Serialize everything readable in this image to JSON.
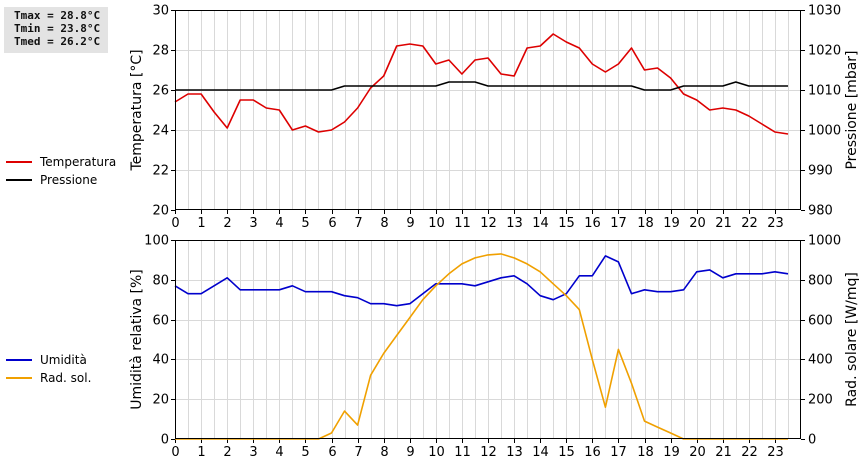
{
  "stats": {
    "tmax": "Tmax = 28.8°C",
    "tmin": "Tmin = 23.8°C",
    "tmed": "Tmed = 26.2°C"
  },
  "chart_data": [
    {
      "type": "line",
      "xlabel": "",
      "ylabel": "Temperatura [°C]",
      "y2label": "Pressione [mbar]",
      "xlim": [
        0,
        24
      ],
      "ylim": [
        20,
        30
      ],
      "y2lim": [
        980,
        1030
      ],
      "x_ticks": [
        "0",
        "1",
        "2",
        "3",
        "4",
        "5",
        "6",
        "7",
        "8",
        "9",
        "10",
        "11",
        "12",
        "13",
        "14",
        "15",
        "16",
        "17",
        "18",
        "19",
        "20",
        "21",
        "22",
        "23"
      ],
      "y_ticks": [
        "20",
        "22",
        "24",
        "26",
        "28",
        "30"
      ],
      "y2_ticks": [
        "980",
        "990",
        "1000",
        "1010",
        "1020",
        "1030"
      ],
      "grid": true,
      "legend": "left",
      "series": [
        {
          "name": "Temperatura",
          "color": "#dd0000",
          "axis": "left",
          "x": [
            0,
            0.5,
            1,
            1.5,
            2,
            2.5,
            3,
            3.5,
            4,
            4.5,
            5,
            5.5,
            6,
            6.5,
            7,
            7.5,
            8,
            8.5,
            9,
            9.5,
            10,
            10.5,
            11,
            11.5,
            12,
            12.5,
            13,
            13.5,
            14,
            14.5,
            15,
            15.5,
            16,
            16.5,
            17,
            17.5,
            18,
            18.5,
            19,
            19.5,
            20,
            20.5,
            21,
            21.5,
            22,
            22.5,
            23,
            23.5
          ],
          "values": [
            25.4,
            25.8,
            25.8,
            24.9,
            24.1,
            25.5,
            25.5,
            25.1,
            25.0,
            24.0,
            24.2,
            23.9,
            24.0,
            24.4,
            25.1,
            26.1,
            26.7,
            28.2,
            28.3,
            28.2,
            27.3,
            27.5,
            26.8,
            27.5,
            27.6,
            26.8,
            26.7,
            28.1,
            28.2,
            28.8,
            28.4,
            28.1,
            27.3,
            26.9,
            27.3,
            28.1,
            27.0,
            27.1,
            26.6,
            25.8,
            25.5,
            25.0,
            25.1,
            25.0,
            24.7,
            24.3,
            23.9,
            23.8
          ]
        },
        {
          "name": "Pressione",
          "color": "#000000",
          "axis": "right",
          "x": [
            0,
            0.5,
            1,
            1.5,
            2,
            2.5,
            3,
            3.5,
            4,
            4.5,
            5,
            5.5,
            6,
            6.5,
            7,
            7.5,
            8,
            8.5,
            9,
            9.5,
            10,
            10.5,
            11,
            11.5,
            12,
            12.5,
            13,
            13.5,
            14,
            14.5,
            15,
            15.5,
            16,
            16.5,
            17,
            17.5,
            18,
            18.5,
            19,
            19.5,
            20,
            20.5,
            21,
            21.5,
            22,
            22.5,
            23,
            23.5
          ],
          "values": [
            1010,
            1010,
            1010,
            1010,
            1010,
            1010,
            1010,
            1010,
            1010,
            1010,
            1010,
            1010,
            1010,
            1011,
            1011,
            1011,
            1011,
            1011,
            1011,
            1011,
            1011,
            1012,
            1012,
            1012,
            1011,
            1011,
            1011,
            1011,
            1011,
            1011,
            1011,
            1011,
            1011,
            1011,
            1011,
            1011,
            1010,
            1010,
            1010,
            1011,
            1011,
            1011,
            1011,
            1012,
            1011,
            1011,
            1011,
            1011
          ]
        }
      ]
    },
    {
      "type": "line",
      "xlabel": "",
      "ylabel": "Umidità relativa [%]",
      "y2label": "Rad. solare [W/mq]",
      "xlim": [
        0,
        24
      ],
      "ylim": [
        0,
        100
      ],
      "y2lim": [
        0,
        1000
      ],
      "x_ticks": [
        "0",
        "1",
        "2",
        "3",
        "4",
        "5",
        "6",
        "7",
        "8",
        "9",
        "10",
        "11",
        "12",
        "13",
        "14",
        "15",
        "16",
        "17",
        "18",
        "19",
        "20",
        "21",
        "22",
        "23"
      ],
      "y_ticks": [
        "0",
        "20",
        "40",
        "60",
        "80",
        "100"
      ],
      "y2_ticks": [
        "0",
        "200",
        "400",
        "600",
        "800",
        "1000"
      ],
      "grid": true,
      "legend": "left",
      "series": [
        {
          "name": "Umidità",
          "color": "#0000cc",
          "axis": "left",
          "x": [
            0,
            0.5,
            1,
            1.5,
            2,
            2.5,
            3,
            3.5,
            4,
            4.5,
            5,
            5.5,
            6,
            6.5,
            7,
            7.5,
            8,
            8.5,
            9,
            9.5,
            10,
            10.5,
            11,
            11.5,
            12,
            12.5,
            13,
            13.5,
            14,
            14.5,
            15,
            15.5,
            16,
            16.5,
            17,
            17.5,
            18,
            18.5,
            19,
            19.5,
            20,
            20.5,
            21,
            21.5,
            22,
            22.5,
            23,
            23.5
          ],
          "values": [
            77,
            73,
            73,
            77,
            81,
            75,
            75,
            75,
            75,
            77,
            74,
            74,
            74,
            72,
            71,
            68,
            68,
            67,
            68,
            73,
            78,
            78,
            78,
            77,
            79,
            81,
            82,
            78,
            72,
            70,
            73,
            82,
            82,
            92,
            89,
            73,
            75,
            74,
            74,
            75,
            84,
            85,
            81,
            83,
            83,
            83,
            84,
            83
          ]
        },
        {
          "name": "Rad. sol.",
          "color": "#f0a000",
          "axis": "right",
          "x": [
            0,
            0.5,
            1,
            1.5,
            2,
            2.5,
            3,
            3.5,
            4,
            4.5,
            5,
            5.5,
            6,
            6.5,
            7,
            7.5,
            8,
            8.5,
            9,
            9.5,
            10,
            10.5,
            11,
            11.5,
            12,
            12.5,
            13,
            13.5,
            14,
            14.5,
            15,
            15.5,
            16,
            16.5,
            17,
            17.5,
            18,
            18.5,
            19,
            19.5,
            20,
            20.5,
            21,
            21.5,
            22,
            22.5,
            23,
            23.5
          ],
          "values": [
            0,
            0,
            0,
            0,
            0,
            0,
            0,
            0,
            0,
            0,
            0,
            0,
            30,
            140,
            70,
            320,
            430,
            520,
            610,
            700,
            770,
            830,
            880,
            910,
            925,
            930,
            910,
            880,
            840,
            780,
            720,
            650,
            400,
            160,
            450,
            280,
            90,
            60,
            30,
            0,
            0,
            0,
            0,
            0,
            0,
            0,
            0,
            0
          ]
        }
      ]
    }
  ]
}
